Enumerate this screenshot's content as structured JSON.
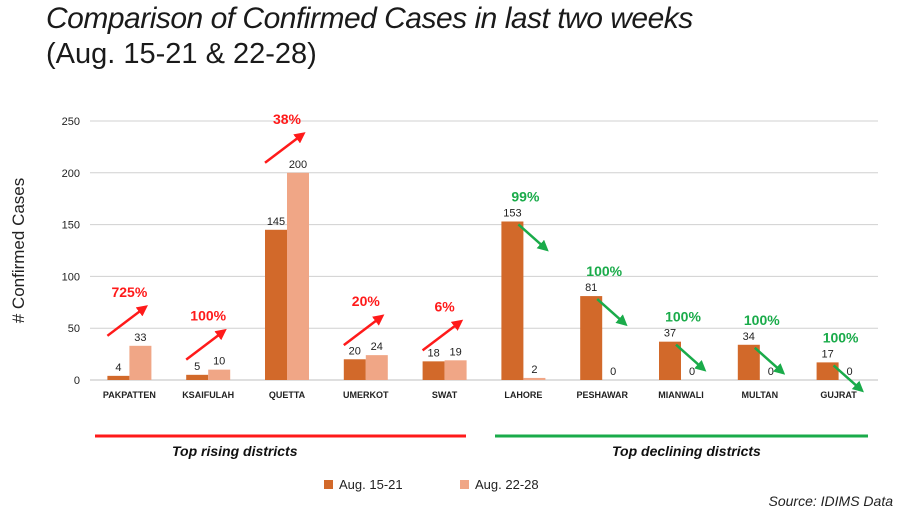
{
  "title": "Comparison of Confirmed Cases in last two weeks",
  "subtitle": "(Aug. 15-21 & 22-28)",
  "source": "Source: IDIMS Data",
  "groups": {
    "rising_label": "Top rising districts",
    "declining_label": "Top declining districts",
    "rising_color": "#ff1a1a",
    "declining_color": "#1aab4a"
  },
  "chart_data": {
    "type": "bar",
    "categories": [
      "PAKPATTEN",
      "KSAIFULAH",
      "QUETTA",
      "UMERKOT",
      "SWAT",
      "LAHORE",
      "PESHAWAR",
      "MIANWALI",
      "MULTAN",
      "GUJRAT"
    ],
    "series": [
      {
        "name": "Aug. 15-21",
        "color": "#d2692a",
        "values": [
          4,
          5,
          145,
          20,
          18,
          153,
          81,
          37,
          34,
          17
        ]
      },
      {
        "name": "Aug. 22-28",
        "color": "#f0a686",
        "values": [
          33,
          10,
          200,
          24,
          19,
          2,
          0,
          0,
          0,
          0
        ]
      }
    ],
    "ylabel": "# Confirmed Cases",
    "xlabel": "",
    "ylim": [
      0,
      250
    ],
    "yticks": [
      0,
      50,
      100,
      150,
      200,
      250
    ],
    "grid": true,
    "legend_position": "bottom-center",
    "annotations": [
      {
        "category": "PAKPATTEN",
        "text": "725%",
        "trend": "up"
      },
      {
        "category": "KSAIFULAH",
        "text": "100%",
        "trend": "up"
      },
      {
        "category": "QUETTA",
        "text": "38%",
        "trend": "up"
      },
      {
        "category": "UMERKOT",
        "text": "20%",
        "trend": "up"
      },
      {
        "category": "SWAT",
        "text": "6%",
        "trend": "up"
      },
      {
        "category": "LAHORE",
        "text": "99%",
        "trend": "down"
      },
      {
        "category": "PESHAWAR",
        "text": "100%",
        "trend": "down"
      },
      {
        "category": "MIANWALI",
        "text": "100%",
        "trend": "down"
      },
      {
        "category": "MULTAN",
        "text": "100%",
        "trend": "down"
      },
      {
        "category": "GUJRAT",
        "text": "100%",
        "trend": "down"
      }
    ]
  }
}
